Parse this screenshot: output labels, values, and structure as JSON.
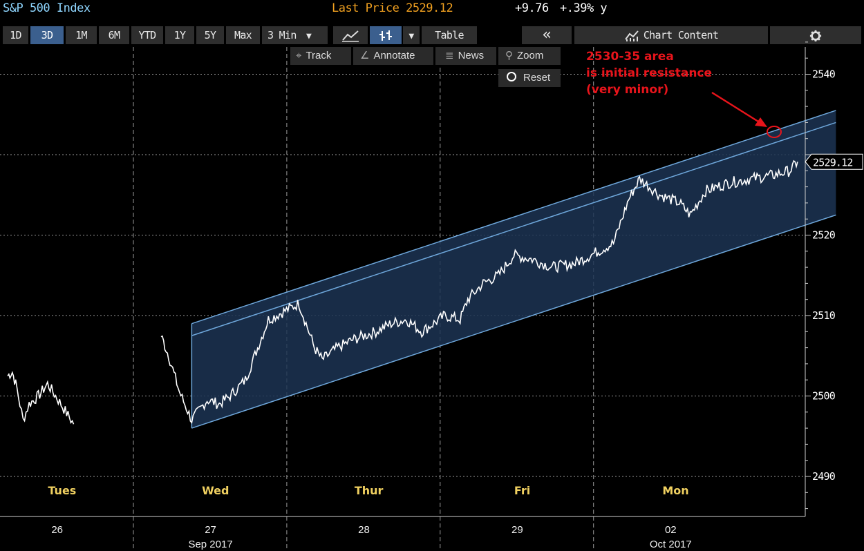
{
  "titlebar": {
    "ticker": "S&P 500 Index",
    "last_price": "Last Price 2529.12",
    "change": "+9.76",
    "change_pct": "+.39% y"
  },
  "toolbar": {
    "ranges": [
      "1D",
      "3D",
      "1M",
      "6M",
      "YTD",
      "1Y",
      "5Y",
      "Max"
    ],
    "active_range": "3D",
    "interval": "3 Min",
    "table_label": "Table",
    "collapse_label": "«",
    "chart_content_label": "Chart Content",
    "settings_icon": "gear-icon"
  },
  "subbar": {
    "track": "Track",
    "annotate": "Annotate",
    "news": "News",
    "zoom": "Zoom",
    "reset": "Reset"
  },
  "annotation": {
    "line1": "2530-35 area",
    "line2": "is initial resistance",
    "line3": "(very minor)",
    "color": "#e8141b"
  },
  "chart_data": {
    "type": "line",
    "title": "S&P 500 Index",
    "series": [
      {
        "name": "",
        "x": [
          "Tue 26",
          "Tue 26",
          "Tue 26",
          "Tue 26",
          "Tue 26",
          "Tue 26",
          "Tue 26",
          "Tue 26",
          "Tue 26",
          "Wed 27",
          "Wed 27",
          "Wed 27",
          "Wed 27",
          "Wed 27",
          "Wed 27",
          "Wed 27",
          "Wed 27",
          "Wed 27",
          "Wed 27",
          "Thu 28",
          "Thu 28",
          "Thu 28",
          "Thu 28",
          "Thu 28",
          "Thu 28",
          "Thu 28",
          "Thu 28",
          "Thu 28",
          "Thu 28",
          "Fri 29",
          "Fri 29",
          "Fri 29",
          "Fri 29",
          "Fri 29",
          "Fri 29",
          "Fri 29",
          "Fri 29",
          "Fri 29",
          "Fri 29",
          "Mon 02",
          "Mon 02",
          "Mon 02",
          "Mon 02",
          "Mon 02",
          "Mon 02",
          "Mon 02",
          "Mon 02",
          "Mon 02",
          "Mon 02"
        ],
        "t": [
          0.0,
          0.03,
          0.06,
          0.1,
          0.14,
          0.2,
          0.26,
          0.33,
          0.43,
          1.0,
          1.05,
          1.12,
          1.2,
          1.3,
          1.38,
          1.45,
          1.55,
          1.7,
          1.9,
          2.0,
          2.05,
          2.15,
          2.25,
          2.4,
          2.5,
          2.6,
          2.7,
          2.85,
          2.95,
          3.0,
          3.1,
          3.2,
          3.3,
          3.42,
          3.55,
          3.7,
          3.85,
          3.95,
          4.05,
          4.12,
          4.25,
          4.38,
          4.45,
          4.55,
          4.7,
          4.85,
          5.0,
          5.1,
          5.15
        ],
        "values": [
          2502.5,
          2503,
          2501,
          2497,
          2499,
          2500,
          2501.5,
          2499.5,
          2496.5,
          2507.5,
          2505,
          2500.5,
          2497,
          2499.5,
          2499,
          2500,
          2502,
          2509.5,
          2511.5,
          2506,
          2504.5,
          2506,
          2507,
          2508,
          2509,
          2509.5,
          2508,
          2510,
          2509.5,
          2512,
          2514,
          2515,
          2517.5,
          2517,
          2516,
          2516.5,
          2518,
          2519,
          2524.5,
          2527,
          2525,
          2524,
          2522.5,
          2525.5,
          2526.5,
          2527,
          2527.5,
          2528,
          2529.12
        ]
      }
    ],
    "xticks": [
      {
        "label": "26",
        "t": 0.3
      },
      {
        "label": "27",
        "t": 1.3
      },
      {
        "label": "28",
        "t": 2.3
      },
      {
        "label": "29",
        "t": 3.3
      },
      {
        "label": "02",
        "t": 4.3
      }
    ],
    "month_labels": [
      {
        "label": "Sep 2017",
        "t": 1.3
      },
      {
        "label": "Oct 2017",
        "t": 4.3
      }
    ],
    "day_labels": [
      {
        "label": "Tues",
        "t": 0.4
      },
      {
        "label": "Wed",
        "t": 1.4
      },
      {
        "label": "Thur",
        "t": 2.4
      },
      {
        "label": "Fri",
        "t": 3.4
      },
      {
        "label": "Mon",
        "t": 4.4
      }
    ],
    "session_breaks": [
      1.0,
      2.0,
      3.0,
      4.0
    ],
    "yticks": [
      2490,
      2500,
      2510,
      2520,
      2540
    ],
    "ylim": [
      2485,
      2544
    ],
    "last_price_label": "2529.12",
    "channel": {
      "upper_outer": [
        [
          1.2,
          2509
        ],
        [
          5.4,
          2535.5
        ]
      ],
      "upper_inner": [
        [
          1.2,
          2507.5
        ],
        [
          5.4,
          2534
        ]
      ],
      "lower": [
        [
          1.2,
          2496
        ],
        [
          5.4,
          2522.5
        ]
      ]
    },
    "grid": true,
    "colors": {
      "line": "#ffffff",
      "channel": "#6fa8dc",
      "fill": "#1c3454",
      "label_yellow": "#f0d060"
    }
  }
}
